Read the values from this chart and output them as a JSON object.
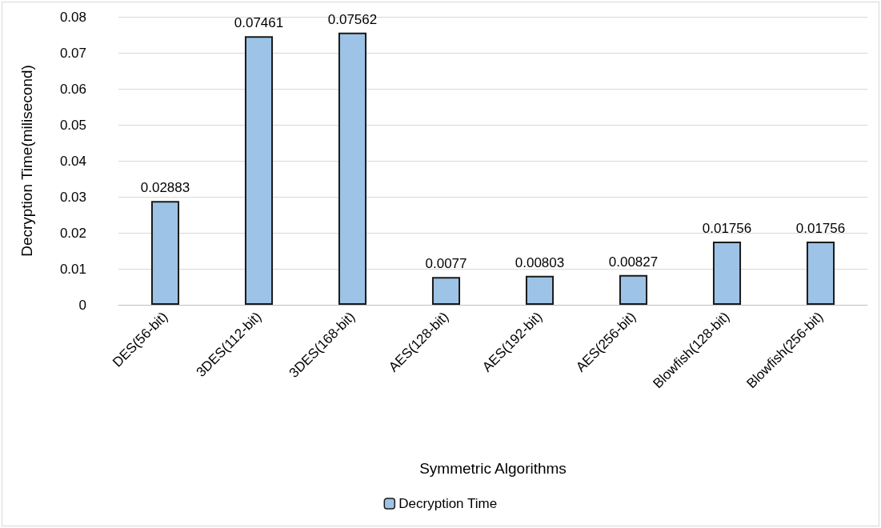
{
  "chart_data": {
    "type": "bar",
    "xlabel": "Symmetric Algorithms",
    "ylabel": "Decryption Time(milisecond)",
    "categories": [
      "DES(56-bit)",
      "3DES(112-bit)",
      "3DES(168-bit)",
      "AES(128-bit)",
      "AES(192-bit)",
      "AES(256-bit)",
      "Blowfish(128-bit)",
      "Blowfish(256-bit)"
    ],
    "series": [
      {
        "name": "Decryption Time",
        "color": "#9dc3e6",
        "values": [
          0.02883,
          0.07461,
          0.07562,
          0.0077,
          0.00803,
          0.00827,
          0.01756,
          0.01756
        ]
      }
    ],
    "ylim": [
      0,
      0.08
    ],
    "yticks": [
      0,
      0.01,
      0.02,
      0.03,
      0.04,
      0.05,
      0.06,
      0.07,
      0.08
    ],
    "grid": "y",
    "legend": "bottom",
    "data_labels": true
  }
}
